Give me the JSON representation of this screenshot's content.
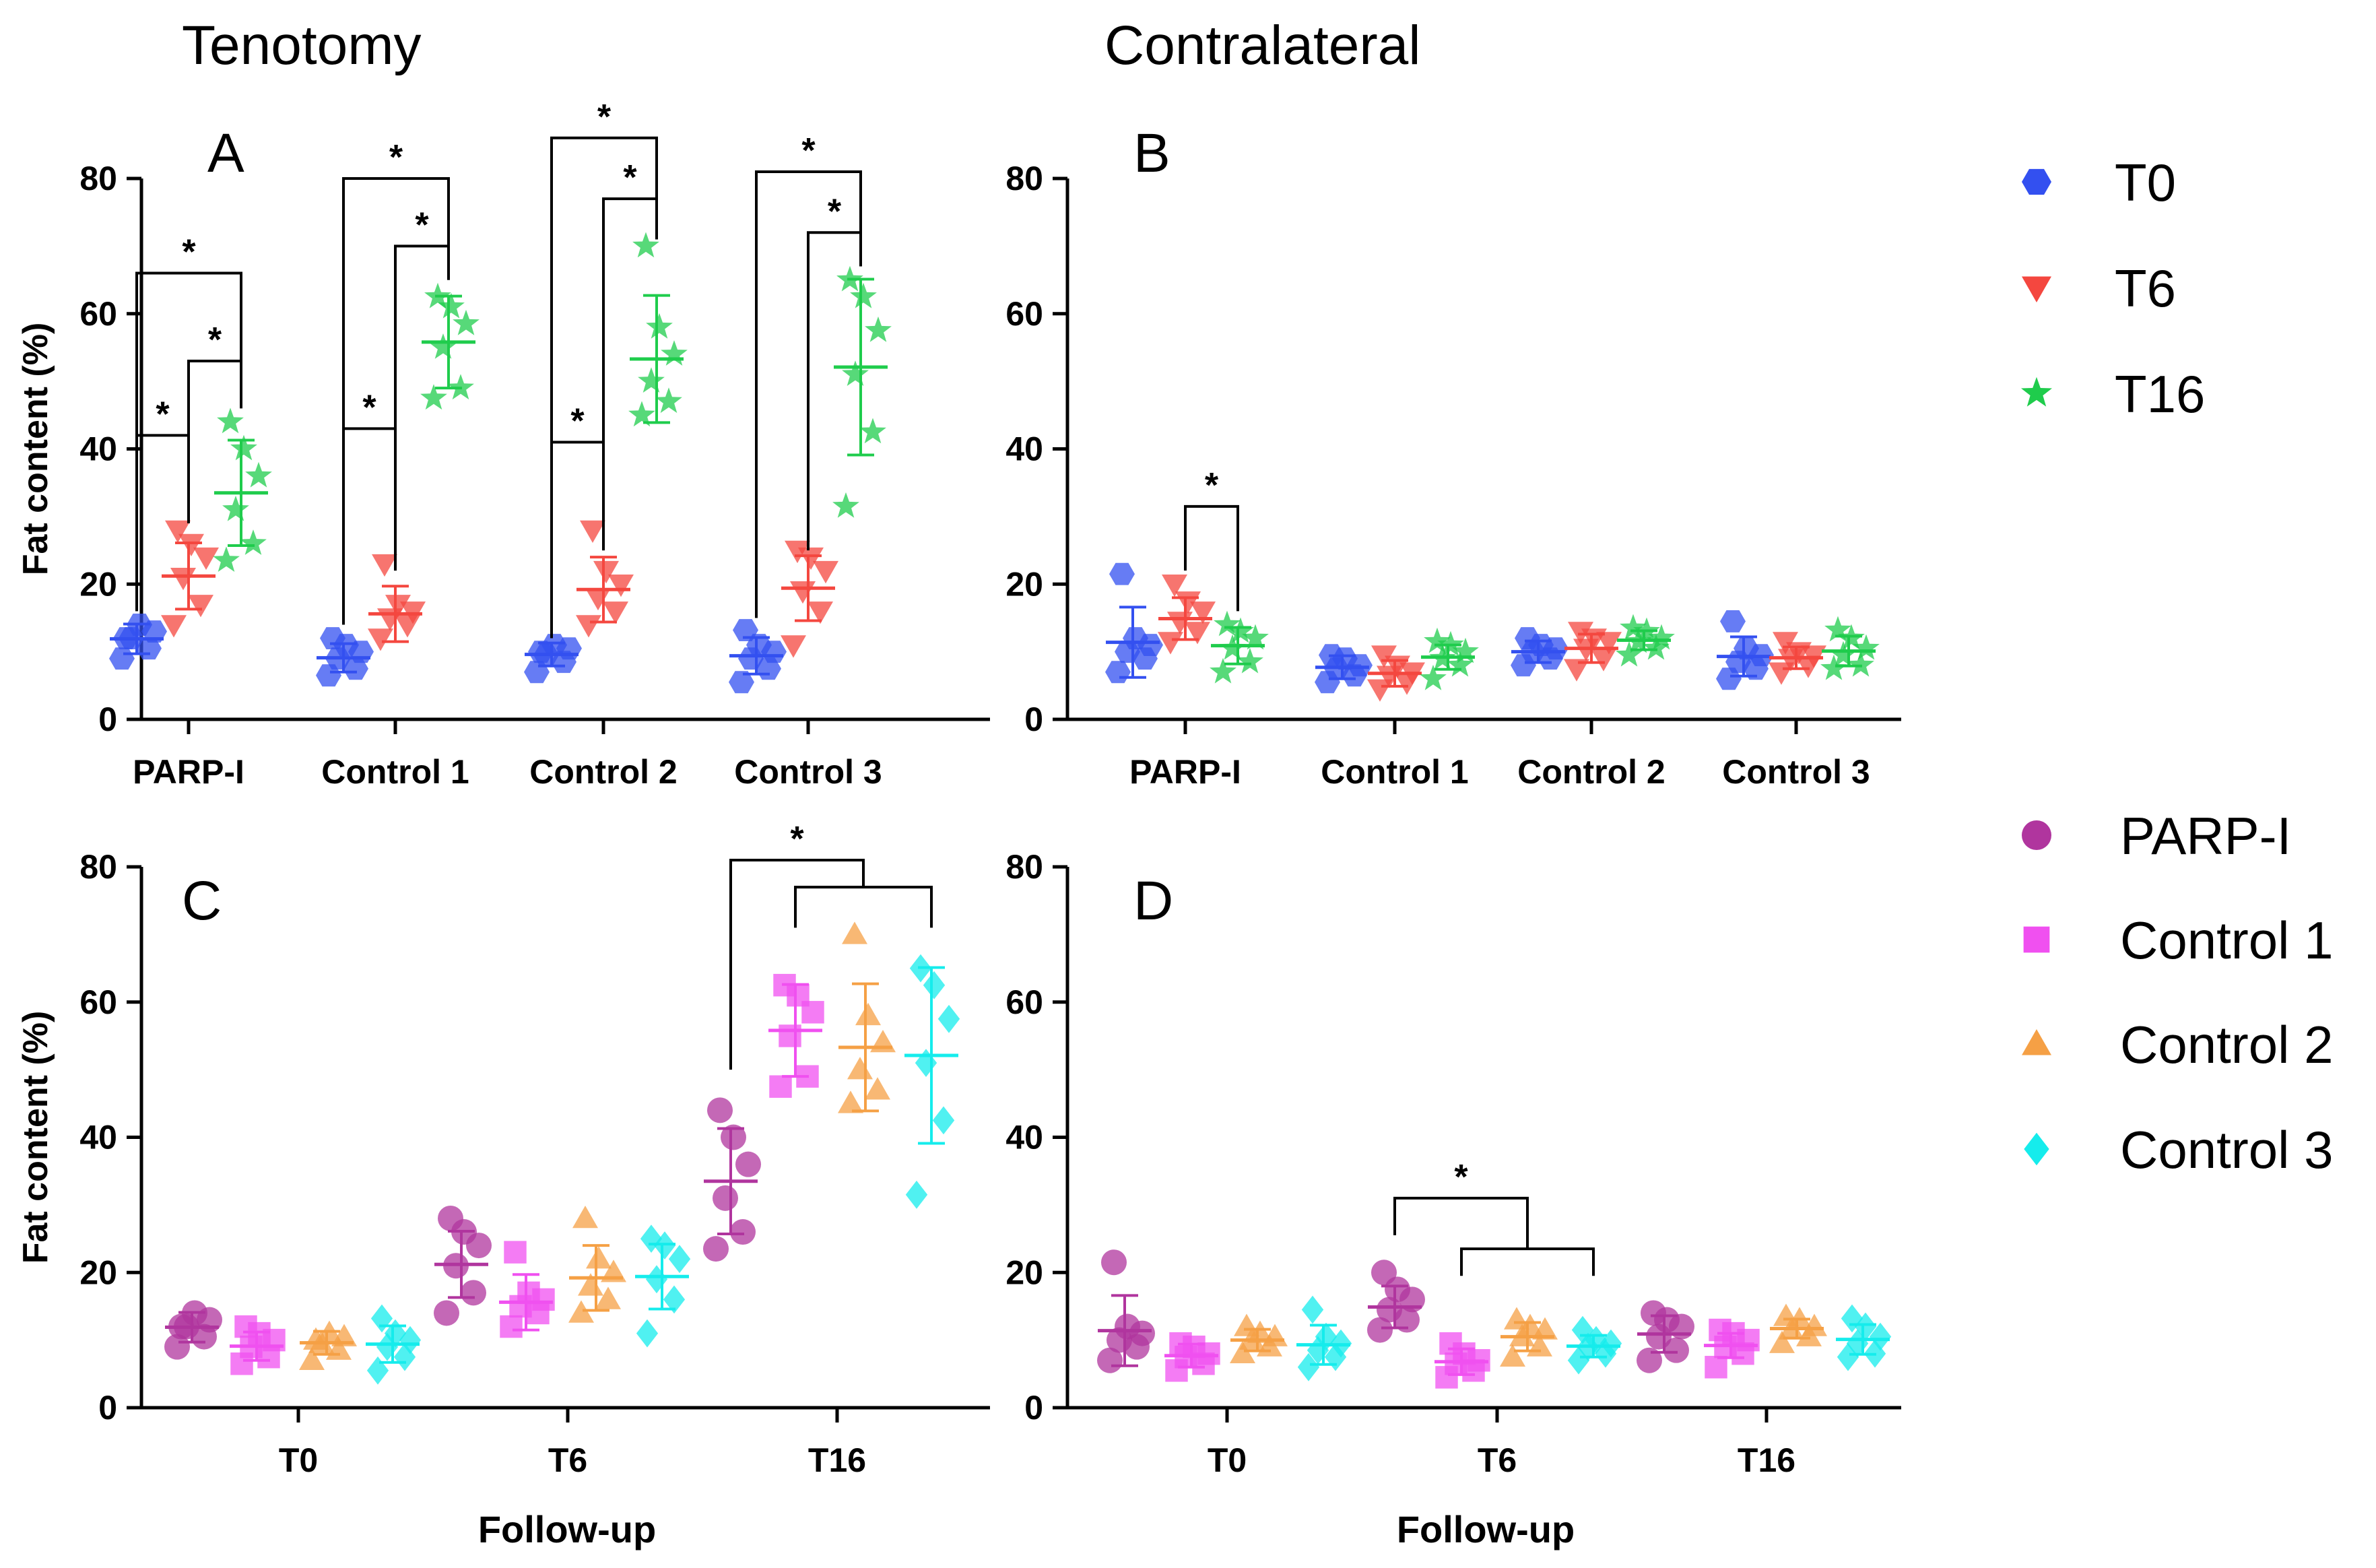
{
  "headings": {
    "left": "Tenotomy",
    "right": "Contralateral"
  },
  "legend_timepoints": [
    {
      "label": "T0",
      "color": "#3350f0",
      "shape": "hexagon"
    },
    {
      "label": "T6",
      "color": "#f4473f",
      "shape": "triangle-down"
    },
    {
      "label": "T16",
      "color": "#1fcc4c",
      "shape": "star"
    }
  ],
  "legend_groups": [
    {
      "label": "PARP-I",
      "color": "#b0359e",
      "shape": "circle"
    },
    {
      "label": "Control 1",
      "color": "#f050f0",
      "shape": "square"
    },
    {
      "label": "Control 2",
      "color": "#f5a045",
      "shape": "triangle-up"
    },
    {
      "label": "Control 3",
      "color": "#15ecec",
      "shape": "diamond"
    }
  ],
  "chart_data": [
    {
      "panel": "A",
      "type": "scatter",
      "title": "Tenotomy",
      "ylabel": "Fat content (%)",
      "xlabel": "",
      "ylim": [
        0,
        80
      ],
      "yticks": [
        0,
        20,
        40,
        60,
        80
      ],
      "categories": [
        "PARP-I",
        "Control 1",
        "Control 2",
        "Control 3"
      ],
      "series": [
        {
          "name": "T0",
          "mean": [
            11.9,
            9.1,
            9.6,
            9.4
          ],
          "sd": [
            2.2,
            2.1,
            1.7,
            2.7
          ],
          "points": [
            [
              9,
              10.5,
              12,
              13,
              14,
              12
            ],
            [
              6.5,
              7.5,
              9,
              10,
              11,
              12
            ],
            [
              7,
              8.5,
              9.5,
              10.5,
              11,
              10
            ],
            [
              5.5,
              7.5,
              9,
              10,
              11,
              13.2
            ]
          ]
        },
        {
          "name": "T6",
          "mean": [
            21.2,
            15.6,
            19.2,
            19.4
          ],
          "sd": [
            4.9,
            4.1,
            4.8,
            4.8
          ],
          "points": [
            [
              14,
              17,
              21,
              24,
              26,
              28
            ],
            [
              12,
              14,
              15,
              16,
              17,
              23
            ],
            [
              14,
              16,
              18,
              20,
              22,
              28
            ],
            [
              11,
              16,
              19,
              22,
              24,
              25
            ]
          ]
        },
        {
          "name": "T16",
          "mean": [
            33.5,
            55.8,
            53.3,
            52.1
          ],
          "sd": [
            7.8,
            6.8,
            9.4,
            13.0
          ],
          "points": [
            [
              23.5,
              26,
              31,
              36,
              40,
              44
            ],
            [
              47.5,
              49,
              55,
              58.5,
              61,
              62.5
            ],
            [
              45,
              47,
              50,
              54,
              58,
              70
            ],
            [
              31.5,
              42.5,
              51,
              57.5,
              62.5,
              65
            ]
          ]
        }
      ],
      "significance": [
        {
          "from": "PARP-I T0",
          "to": "PARP-I T6",
          "label": "*"
        },
        {
          "from": "PARP-I T6",
          "to": "PARP-I T16",
          "label": "*"
        },
        {
          "from": "PARP-I T0",
          "to": "PARP-I T16",
          "label": "*"
        },
        {
          "from": "Control 1 T0",
          "to": "Control 1 T6",
          "label": "*"
        },
        {
          "from": "Control 1 T6",
          "to": "Control 1 T16",
          "label": "*"
        },
        {
          "from": "Control 1 T0",
          "to": "Control 1 T16",
          "label": "*"
        },
        {
          "from": "Control 2 T0",
          "to": "Control 2 T6",
          "label": "*"
        },
        {
          "from": "Control 2 T6",
          "to": "Control 2 T16",
          "label": "*"
        },
        {
          "from": "Control 2 T0",
          "to": "Control 2 T16",
          "label": "*"
        },
        {
          "from": "Control 3 T6",
          "to": "Control 3 T16",
          "label": "*"
        },
        {
          "from": "Control 3 T0",
          "to": "Control 3 T16",
          "label": "*"
        }
      ]
    },
    {
      "panel": "B",
      "type": "scatter",
      "title": "Contralateral",
      "ylabel": "",
      "xlabel": "",
      "ylim": [
        0,
        80
      ],
      "yticks": [
        0,
        20,
        40,
        60,
        80
      ],
      "categories": [
        "PARP-I",
        "Control 1",
        "Control 2",
        "Control 3"
      ],
      "series": [
        {
          "name": "T0",
          "mean": [
            11.4,
            7.7,
            10.0,
            9.3
          ],
          "sd": [
            5.2,
            1.7,
            1.6,
            2.9
          ],
          "points": [
            [
              7,
              9,
              10,
              11,
              12,
              21.5
            ],
            [
              5.5,
              6.5,
              7.5,
              8,
              9,
              9.5
            ],
            [
              8,
              9,
              10,
              10.5,
              11,
              12
            ],
            [
              6,
              7.5,
              8.5,
              9.5,
              10.5,
              14.5
            ]
          ]
        },
        {
          "name": "T6",
          "mean": [
            14.9,
            6.8,
            10.5,
            9.1
          ],
          "sd": [
            3.1,
            1.9,
            2.1,
            1.6
          ],
          "points": [
            [
              11.5,
              13,
              14.5,
              16,
              17.5,
              20
            ],
            [
              4.5,
              5.5,
              6.5,
              7,
              8,
              9.5
            ],
            [
              7.5,
              9,
              10.5,
              11.5,
              12,
              13
            ],
            [
              7,
              8,
              9,
              9.5,
              10,
              11.5
            ]
          ]
        },
        {
          "name": "T16",
          "mean": [
            10.9,
            9.2,
            11.7,
            10.1
          ],
          "sd": [
            2.7,
            1.8,
            1.4,
            2.2
          ],
          "points": [
            [
              7,
              8.5,
              10.5,
              12,
              13,
              14
            ],
            [
              6,
              8,
              9,
              10,
              11,
              11.5
            ],
            [
              9.5,
              10.5,
              11.5,
              12,
              13,
              13.5
            ],
            [
              7.5,
              8,
              9.5,
              10.5,
              12,
              13.2
            ]
          ]
        }
      ],
      "significance": [
        {
          "from": "PARP-I T6",
          "to": "PARP-I T16",
          "label": "*"
        }
      ]
    },
    {
      "panel": "C",
      "type": "scatter",
      "title": "",
      "ylabel": "Fat content (%)",
      "xlabel": "Follow-up",
      "ylim": [
        0,
        80
      ],
      "yticks": [
        0,
        20,
        40,
        60,
        80
      ],
      "categories": [
        "T0",
        "T6",
        "T16"
      ],
      "series": [
        {
          "name": "PARP-I",
          "mean": [
            11.9,
            21.2,
            33.5
          ],
          "sd": [
            2.2,
            4.9,
            7.8
          ],
          "points": [
            [
              9,
              10.5,
              12,
              13,
              14,
              12
            ],
            [
              14,
              17,
              21,
              24,
              26,
              28
            ],
            [
              23.5,
              26,
              31,
              36,
              40,
              44
            ]
          ]
        },
        {
          "name": "Control 1",
          "mean": [
            9.1,
            15.6,
            55.8
          ],
          "sd": [
            2.1,
            4.1,
            6.8
          ],
          "points": [
            [
              6.5,
              7.5,
              9,
              10,
              11,
              12
            ],
            [
              12,
              14,
              15,
              16,
              17,
              23
            ],
            [
              47.5,
              49,
              55,
              58.5,
              61,
              62.5
            ]
          ]
        },
        {
          "name": "Control 2",
          "mean": [
            9.6,
            19.2,
            53.3
          ],
          "sd": [
            1.7,
            4.8,
            9.4
          ],
          "points": [
            [
              7,
              8.5,
              9.5,
              10.5,
              11,
              10
            ],
            [
              14,
              16,
              18,
              20,
              22,
              28
            ],
            [
              45,
              47,
              50,
              54,
              58,
              70
            ]
          ]
        },
        {
          "name": "Control 3",
          "mean": [
            9.4,
            19.4,
            52.1
          ],
          "sd": [
            2.7,
            4.8,
            13.0
          ],
          "points": [
            [
              5.5,
              7.5,
              9,
              10,
              11,
              13.2
            ],
            [
              11,
              16,
              19,
              22,
              24,
              25
            ],
            [
              31.5,
              42.5,
              51,
              57.5,
              62.5,
              65
            ]
          ]
        }
      ],
      "significance": [
        {
          "from": "T16 PARP-I",
          "to": "T16 Controls 1-3",
          "label": "*"
        }
      ]
    },
    {
      "panel": "D",
      "type": "scatter",
      "title": "",
      "ylabel": "",
      "xlabel": "Follow-up",
      "ylim": [
        0,
        80
      ],
      "yticks": [
        0,
        20,
        40,
        60,
        80
      ],
      "categories": [
        "T0",
        "T6",
        "T16"
      ],
      "series": [
        {
          "name": "PARP-I",
          "mean": [
            11.4,
            14.9,
            10.9
          ],
          "sd": [
            5.2,
            3.1,
            2.7
          ],
          "points": [
            [
              7,
              9,
              10,
              11,
              12,
              21.5
            ],
            [
              11.5,
              13,
              14.5,
              16,
              17.5,
              20
            ],
            [
              7,
              8.5,
              10.5,
              12,
              13,
              14
            ]
          ]
        },
        {
          "name": "Control 1",
          "mean": [
            7.7,
            6.8,
            9.2
          ],
          "sd": [
            1.7,
            1.9,
            1.8
          ],
          "points": [
            [
              5.5,
              6.5,
              7.5,
              8,
              9,
              9.5
            ],
            [
              4.5,
              5.5,
              6.5,
              7,
              8,
              9.5
            ],
            [
              6,
              8,
              9,
              10,
              11,
              11.5
            ]
          ]
        },
        {
          "name": "Control 2",
          "mean": [
            10.0,
            10.5,
            11.7
          ],
          "sd": [
            1.6,
            2.1,
            1.4
          ],
          "points": [
            [
              8,
              9,
              10,
              10.5,
              11,
              12
            ],
            [
              7.5,
              9,
              10.5,
              11.5,
              12,
              13
            ],
            [
              9.5,
              10.5,
              11.5,
              12,
              13,
              13.5
            ]
          ]
        },
        {
          "name": "Control 3",
          "mean": [
            9.3,
            9.1,
            10.1
          ],
          "sd": [
            2.9,
            1.6,
            2.2
          ],
          "points": [
            [
              6,
              7.5,
              8.5,
              9.5,
              10.5,
              14.5
            ],
            [
              7,
              8,
              9,
              9.5,
              10,
              11.5
            ],
            [
              7.5,
              8,
              9.5,
              10.5,
              12,
              13.2
            ]
          ]
        }
      ],
      "significance": [
        {
          "from": "T6 PARP-I",
          "to": "T6 Controls 1-3",
          "label": "*"
        }
      ]
    }
  ]
}
